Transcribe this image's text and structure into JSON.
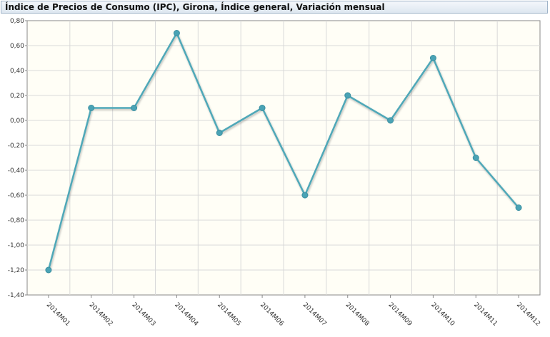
{
  "chart_data": {
    "type": "line",
    "title": "Índice de Precios de Consumo (IPC), Girona, Índice general, Variación mensual",
    "xlabel": "",
    "ylabel": "",
    "categories": [
      "2014M01",
      "2014M02",
      "2014M03",
      "2014M04",
      "2014M05",
      "2014M06",
      "2014M07",
      "2014M08",
      "2014M09",
      "2014M10",
      "2014M11",
      "2014M12"
    ],
    "series": [
      {
        "values": [
          -1.2,
          0.1,
          0.1,
          0.7,
          -0.1,
          0.1,
          -0.6,
          0.2,
          0.0,
          0.5,
          -0.3,
          -0.7
        ]
      }
    ],
    "ylim": [
      -1.4,
      0.8
    ],
    "y_ticks": [
      "0,80",
      "0,60",
      "0,40",
      "0,20",
      "0,00",
      "-0,20",
      "-0,40",
      "-0,60",
      "-0,80",
      "-1,00",
      "-1,20",
      "-1,40"
    ],
    "grid": true,
    "colors": {
      "line": "#4fa8b8",
      "marker": "#4aa3b5",
      "plot_bg": "#fffef6",
      "grid": "#d9d9d9"
    }
  }
}
